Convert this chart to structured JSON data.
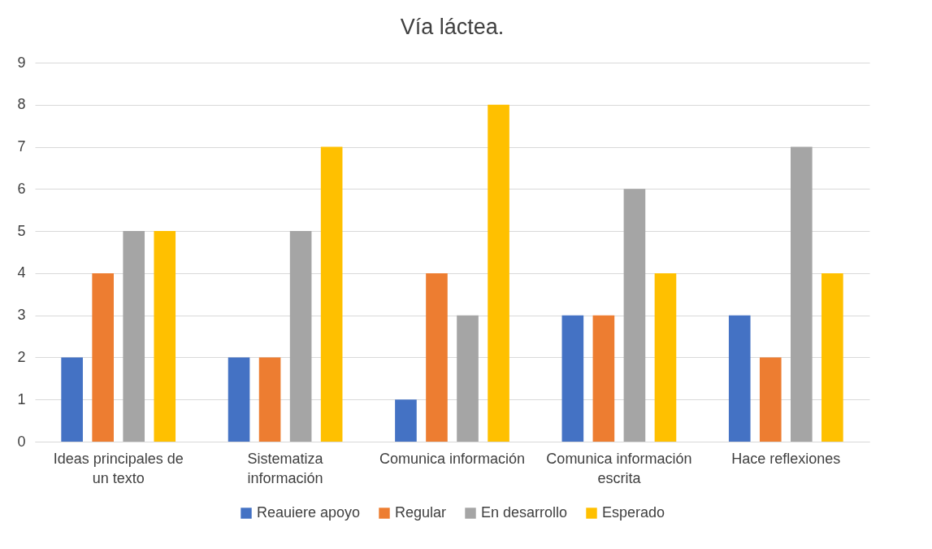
{
  "chart_data": {
    "type": "bar",
    "title": "Vía láctea.",
    "categories": [
      "Ideas principales de un texto",
      "Sistematiza información",
      "Comunica información",
      "Comunica información escrita",
      "Hace reflexiones"
    ],
    "series": [
      {
        "name": "Reauiere apoyo",
        "color": "#4472c4",
        "values": [
          2,
          2,
          1,
          3,
          3
        ]
      },
      {
        "name": "Regular",
        "color": "#ed7d31",
        "values": [
          4,
          2,
          4,
          3,
          2
        ]
      },
      {
        "name": "En desarrollo",
        "color": "#a5a5a5",
        "values": [
          5,
          5,
          3,
          6,
          7
        ]
      },
      {
        "name": "Esperado",
        "color": "#ffc000",
        "values": [
          5,
          7,
          8,
          4,
          4
        ]
      }
    ],
    "ylim": [
      0,
      9
    ],
    "yticks": [
      0,
      1,
      2,
      3,
      4,
      5,
      6,
      7,
      8,
      9
    ],
    "grid": "y",
    "legend": "bottom"
  }
}
